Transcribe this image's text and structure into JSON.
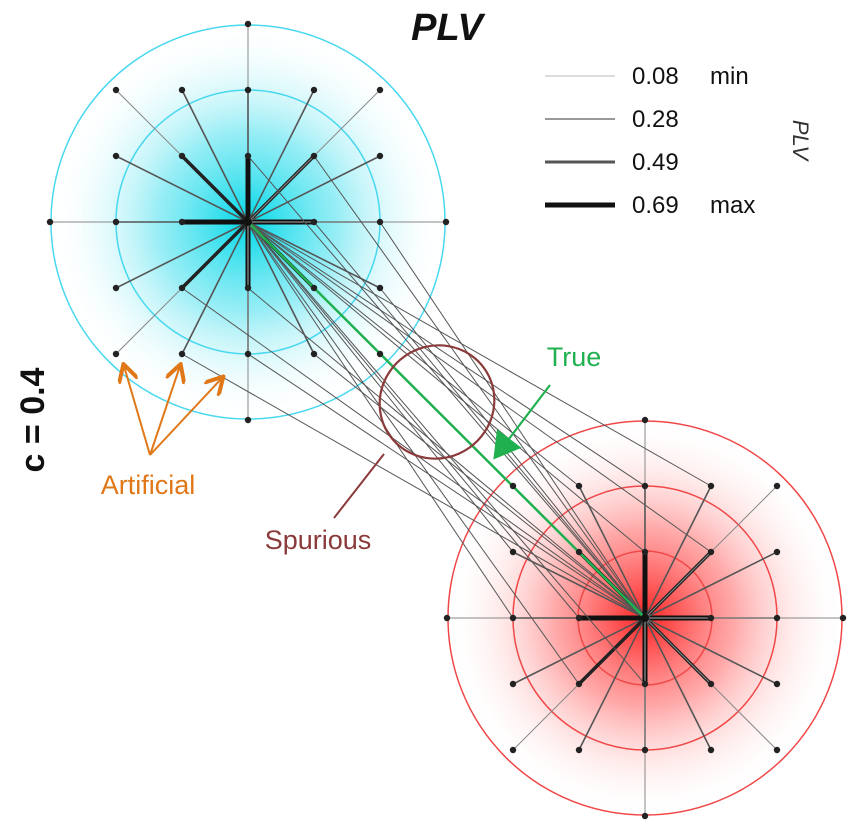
{
  "title": "PLV",
  "side_label": "c = 0.4",
  "legend": {
    "axis_label": "PLV",
    "entries": [
      {
        "value": "0.08",
        "tag": "min"
      },
      {
        "value": "0.28",
        "tag": ""
      },
      {
        "value": "0.49",
        "tag": ""
      },
      {
        "value": "0.69",
        "tag": "max"
      }
    ]
  },
  "annotations": {
    "true_label": "True",
    "spurious_label": "Spurious",
    "artificial_label": "Artificial"
  },
  "colors": {
    "source_cluster": "#00d8e8",
    "source_rings": "#48d8f0",
    "target_cluster": "#ff2020",
    "target_rings": "#f04848",
    "true_link": "#20b050",
    "spurious": "#8b3a3a",
    "artificial": "#e07818",
    "links": "#555555"
  }
}
